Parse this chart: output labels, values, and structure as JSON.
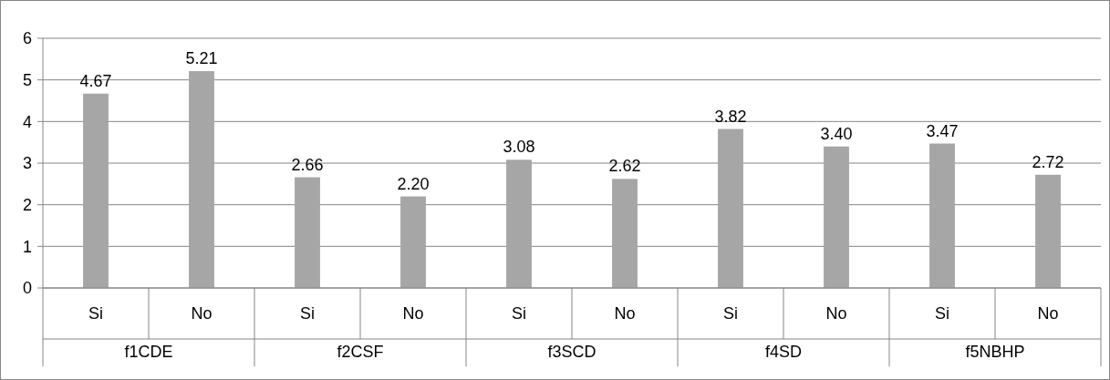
{
  "chart_data": {
    "type": "bar",
    "categories": [
      "Si",
      "No",
      "Si",
      "No",
      "Si",
      "No",
      "Si",
      "No",
      "Si",
      "No"
    ],
    "values": [
      4.67,
      5.21,
      2.66,
      2.2,
      3.08,
      2.62,
      3.82,
      3.4,
      3.47,
      2.72
    ],
    "value_labels": [
      "4.67",
      "5.21",
      "2.66",
      "2.20",
      "3.08",
      "2.62",
      "3.82",
      "3.40",
      "3.47",
      "2.72"
    ],
    "color": "#a6a6a6",
    "ylim": [
      0,
      6
    ],
    "yticks": [
      0,
      1,
      2,
      3,
      4,
      5,
      6
    ],
    "grid": "y",
    "annotations": [
      "f1CDE",
      "f2CSF",
      "f3SCD",
      "f4SD",
      "f5NBHP"
    ]
  }
}
